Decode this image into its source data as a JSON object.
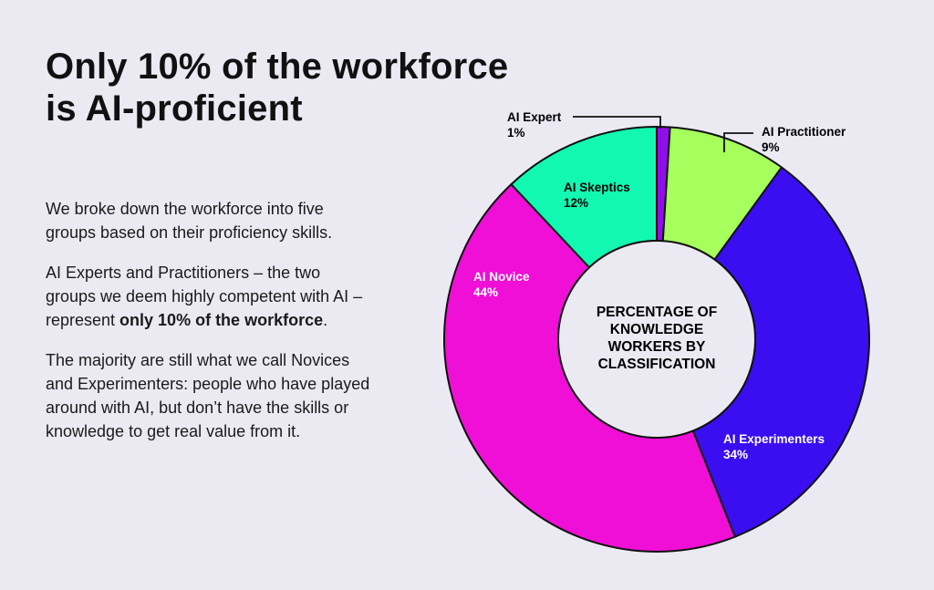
{
  "headline": {
    "line1": "Only 10% of the workforce",
    "line2": "is AI-proficient"
  },
  "body": {
    "p1": "We broke down the workforce into five groups based on their proficiency skills.",
    "p2_start": "AI Experts and Practitioners – the two groups we deem highly competent with AI – represent ",
    "p2_bold": "only 10% of the workforce",
    "p2_end": ".",
    "p3": "The majority are still what we call Novices and Experimenters: people who have played around with AI, but don’t have the skills or knowledge to get real value from it."
  },
  "chart_data": {
    "type": "pie",
    "donut": true,
    "center_label": [
      "PERCENTAGE OF",
      "KNOWLEDGE",
      "WORKERS BY",
      "CLASSIFICATION"
    ],
    "start": "top",
    "direction": "clockwise",
    "slices": [
      {
        "label": "AI Expert",
        "value": 1,
        "value_label": "1%",
        "color": "#8f0fe8"
      },
      {
        "label": "AI Practitioner",
        "value": 9,
        "value_label": "9%",
        "color": "#a6ff5c"
      },
      {
        "label": "AI Experimenters",
        "value": 34,
        "value_label": "34%",
        "color": "#3a0ef0"
      },
      {
        "label": "AI Novice",
        "value": 44,
        "value_label": "44%",
        "color": "#f00fd6"
      },
      {
        "label": "AI Skeptics",
        "value": 12,
        "value_label": "12%",
        "color": "#12f7b2"
      }
    ]
  }
}
